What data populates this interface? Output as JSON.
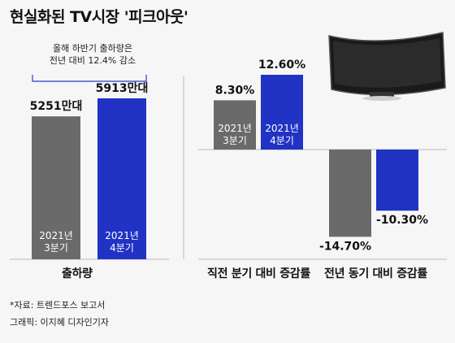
{
  "title": "현실화된 TV시장 '피크아웃'",
  "callout": {
    "line1": "올해 하반기 출하량은",
    "line2": "전년 대비 12.4% 감소"
  },
  "source": {
    "data": "*자료: 트렌드포스 보고서",
    "graphic": "그래픽: 이지혜 디자인기자"
  },
  "colors": {
    "gray": "#6a6a6a",
    "blue": "#2033c4",
    "axis": "#bbbbbb",
    "brace": "#2a3fc9",
    "bg": "#f6f6f6"
  },
  "chart_data": [
    {
      "type": "bar",
      "caption": "출하량",
      "unit": "만대",
      "categories": [
        "2021년 3분기",
        "2021년 4분기"
      ],
      "values": [
        5251,
        5913
      ],
      "value_labels": [
        "5251만대",
        "5913만대"
      ],
      "ylim": [
        0,
        6500
      ]
    },
    {
      "type": "bar",
      "caption": "직전 분기 대비 증감률",
      "unit": "%",
      "categories": [
        "2021년 3분기",
        "2021년 4분기"
      ],
      "values": [
        8.3,
        12.6
      ],
      "value_labels": [
        "8.30%",
        "12.60%"
      ]
    },
    {
      "type": "bar",
      "caption": "전년 동기 대비 증감률",
      "unit": "%",
      "categories": [
        "2021년 3분기",
        "2021년 4분기"
      ],
      "values": [
        -14.7,
        -10.3
      ],
      "value_labels": [
        "-14.70%",
        "-10.30%"
      ]
    }
  ],
  "bar_inner_labels": [
    [
      "2021년",
      "3분기"
    ],
    [
      "2021년",
      "4분기"
    ]
  ]
}
